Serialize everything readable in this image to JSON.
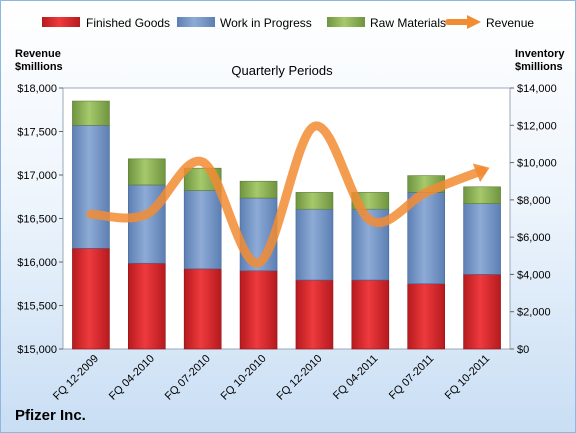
{
  "chart_data": {
    "type": "bar",
    "title": "Quarterly Periods",
    "company": "Pfizer Inc.",
    "left_axis_title": [
      "Revenue",
      "$millions"
    ],
    "right_axis_title": [
      "Inventory",
      "$millions"
    ],
    "categories": [
      "FQ 12-2009",
      "FQ 04-2010",
      "FQ 07-2010",
      "FQ 10-2010",
      "FQ 12-2010",
      "FQ 04-2011",
      "FQ 07-2011",
      "FQ 10-2011"
    ],
    "stacked": true,
    "series": [
      {
        "name": "Finished Goods",
        "axis": "right",
        "color": "#e0262b",
        "values": [
          5400,
          4600,
          4300,
          4200,
          3700,
          3700,
          3500,
          4000
        ]
      },
      {
        "name": "Work in Progress",
        "axis": "right",
        "color": "#7395c6",
        "values": [
          6600,
          4200,
          4200,
          3900,
          3800,
          3800,
          4900,
          3800
        ]
      },
      {
        "name": "Raw Materials",
        "axis": "right",
        "color": "#8fb159",
        "values": [
          1300,
          1400,
          1200,
          900,
          900,
          900,
          900,
          900
        ]
      },
      {
        "name": "Revenue",
        "axis": "left",
        "type": "line",
        "color": "#f28c33",
        "values": [
          16550,
          16550,
          17150,
          15990,
          17560,
          16480,
          16800,
          17050
        ]
      }
    ],
    "left_axis": {
      "min": 15000,
      "max": 18000,
      "ticks": [
        "$15,000",
        "$15,500",
        "$16,000",
        "$16,500",
        "$17,000",
        "$17,500",
        "$18,000"
      ]
    },
    "right_axis": {
      "min": 0,
      "max": 14000,
      "ticks": [
        "$0",
        "$2,000",
        "$4,000",
        "$6,000",
        "$8,000",
        "$10,000",
        "$12,000",
        "$14,000"
      ]
    },
    "legend_position": "top",
    "grid": false
  }
}
